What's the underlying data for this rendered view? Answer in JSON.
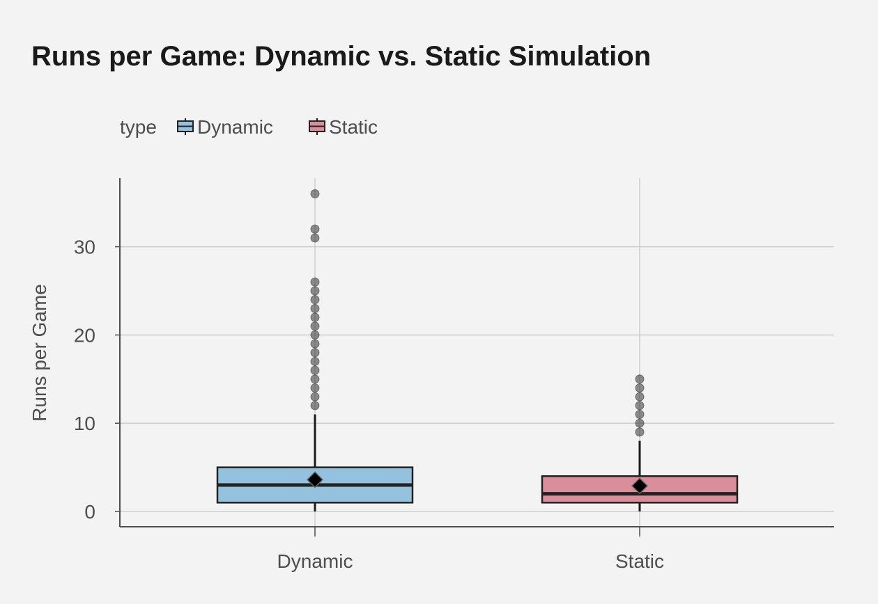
{
  "chart_data": {
    "type": "box",
    "title": "Runs per Game: Dynamic vs. Static Simulation",
    "xlabel": "",
    "ylabel": "Runs per Game",
    "ylim": [
      -1.8,
      37.7
    ],
    "yticks": [
      0,
      10,
      20,
      30
    ],
    "categories": [
      "Dynamic",
      "Static"
    ],
    "legend": {
      "title": "type",
      "position": "top-left",
      "entries": [
        "Dynamic",
        "Static"
      ]
    },
    "grid": true,
    "series": [
      {
        "name": "Dynamic",
        "color": "#94c1de",
        "min": 0,
        "q1": 1,
        "median": 3,
        "q3": 5,
        "max": 11,
        "mean": 3.6,
        "outliers": [
          12,
          13,
          14,
          15,
          16,
          17,
          18,
          19,
          20,
          21,
          22,
          23,
          24,
          25,
          26,
          31,
          32,
          36
        ]
      },
      {
        "name": "Static",
        "color": "#da8d9a",
        "min": 0,
        "q1": 1,
        "median": 2,
        "q3": 4,
        "max": 8,
        "mean": 2.9,
        "outliers": [
          9,
          10,
          11,
          12,
          13,
          14,
          15
        ]
      }
    ]
  }
}
